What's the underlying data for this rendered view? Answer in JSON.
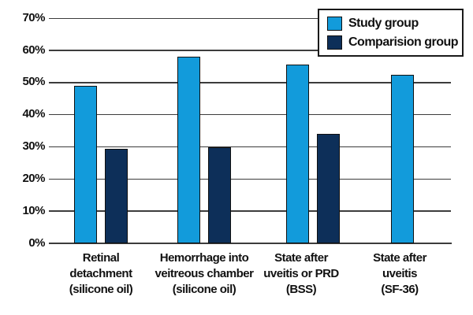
{
  "chart_data": {
    "type": "bar",
    "title": "",
    "xlabel": "",
    "ylabel": "",
    "categories": [
      "Retinal\ndetachment\n(silicone oil)",
      "Hemorrhage into\nveitreous chamber\n(silicone oil)",
      "State after\nuveitis or PRD\n(BSS)",
      "State after\nuveitis\n(SF-36)"
    ],
    "series": [
      {
        "name": "Study group",
        "color": "#129BDB",
        "values": [
          49,
          58,
          55.5,
          52.5
        ]
      },
      {
        "name": "Comparision group",
        "color": "#0D2F59",
        "values": [
          29.5,
          30,
          34,
          null
        ]
      }
    ],
    "ylim": [
      0,
      70
    ],
    "y_ticks": [
      "0%",
      "10%",
      "20%",
      "30%",
      "40%",
      "50%",
      "60%",
      "70%"
    ],
    "grid": true,
    "legend_position": "top-right",
    "colors": {
      "gridline": "#3c3c3c",
      "text": "#111111",
      "background": "#ffffff",
      "bar_outline": "#101010"
    }
  }
}
